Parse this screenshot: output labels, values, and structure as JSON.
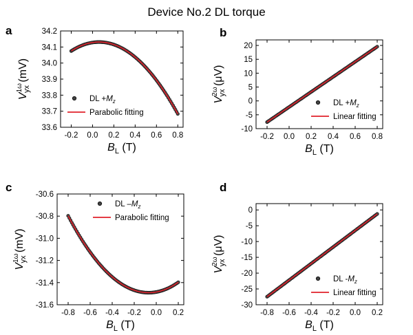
{
  "figure_title": "Device No.2 DL torque",
  "colors": {
    "data": "#111111",
    "fit": "#e0202a",
    "axis": "#000000"
  },
  "chart_data": [
    {
      "panel": "a",
      "type": "scatter",
      "xlabel": "B",
      "xlabel_sub": "L",
      "xlabel_unit": "(T)",
      "ylabel": "V",
      "ylabel_sup": "1ω",
      "ylabel_sub": "yx",
      "ylabel_unit": "(mV)",
      "xlim": [
        -0.3,
        0.85
      ],
      "ylim": [
        33.6,
        34.2
      ],
      "xticks": [
        -0.2,
        0.0,
        0.2,
        0.4,
        0.6,
        0.8
      ],
      "yticks": [
        33.6,
        33.7,
        33.8,
        33.9,
        34.0,
        34.1,
        34.2
      ],
      "xtick_labels": [
        "-0.2",
        "0.0",
        "0.2",
        "0.4",
        "0.6",
        "0.8"
      ],
      "ytick_labels": [
        "33.6",
        "33.7",
        "33.8",
        "33.9",
        "34.0",
        "34.1",
        "34.2"
      ],
      "legend_position": "bottom-left",
      "legend": [
        {
          "kind": "scatter",
          "label": "DL +",
          "math": "M",
          "math_sub": "z"
        },
        {
          "kind": "line",
          "label": "Parabolic fitting"
        }
      ],
      "data_series": {
        "x_range": [
          -0.2,
          0.8
        ],
        "coeffs": [
          34.128,
          0.1,
          -0.82
        ]
      },
      "fit_series": {
        "x_range": [
          -0.2,
          0.8
        ],
        "coeffs": [
          34.128,
          0.1,
          -0.82
        ]
      }
    },
    {
      "panel": "b",
      "type": "scatter",
      "xlabel": "B",
      "xlabel_sub": "L",
      "xlabel_unit": "(T)",
      "ylabel": "V",
      "ylabel_sup": "2ω",
      "ylabel_sub": "yx",
      "ylabel_unit": "(μV)",
      "xlim": [
        -0.3,
        0.85
      ],
      "ylim": [
        -10,
        22
      ],
      "xticks": [
        -0.2,
        0.0,
        0.2,
        0.4,
        0.6,
        0.8
      ],
      "yticks": [
        -10,
        -5,
        0,
        5,
        10,
        15,
        20
      ],
      "xtick_labels": [
        "-0.2",
        "0.0",
        "0.2",
        "0.4",
        "0.6",
        "0.8"
      ],
      "ytick_labels": [
        "-10",
        "-5",
        "0",
        "5",
        "10",
        "15",
        "20"
      ],
      "legend_position": "bottom-right",
      "legend": [
        {
          "kind": "scatter",
          "label": "DL +",
          "math": "M",
          "math_sub": "z"
        },
        {
          "kind": "line",
          "label": "Linear fitting"
        }
      ],
      "data_series": {
        "x_range": [
          -0.2,
          0.8
        ],
        "coeffs": [
          -2.2,
          27.2,
          0
        ]
      },
      "fit_series": {
        "x_range": [
          -0.2,
          0.8
        ],
        "coeffs": [
          -2.2,
          27.2,
          0
        ]
      }
    },
    {
      "panel": "c",
      "type": "scatter",
      "xlabel": "B",
      "xlabel_sub": "L",
      "xlabel_unit": "(T)",
      "ylabel": "V",
      "ylabel_sup": "1ω",
      "ylabel_sub": "yx",
      "ylabel_unit": "(mV)",
      "xlim": [
        -0.9,
        0.25
      ],
      "ylim": [
        -31.6,
        -30.6
      ],
      "xticks": [
        -0.8,
        -0.6,
        -0.4,
        -0.2,
        0.0,
        0.2
      ],
      "yticks": [
        -31.6,
        -31.4,
        -31.2,
        -31.0,
        -30.8,
        -30.6
      ],
      "xtick_labels": [
        "-0.8",
        "-0.6",
        "-0.4",
        "-0.2",
        "0.0",
        "0.2"
      ],
      "ytick_labels": [
        "-31.6",
        "-31.4",
        "-31.2",
        "-31.0",
        "-30.8",
        "-30.6"
      ],
      "legend_position": "top-right",
      "legend": [
        {
          "kind": "scatter",
          "label": "DL –",
          "math": "M",
          "math_sub": "z"
        },
        {
          "kind": "line",
          "label": "Parabolic fitting"
        }
      ],
      "data_series": {
        "x_range": [
          -0.8,
          0.2
        ],
        "coeffs": [
          -31.485,
          0.18,
          1.3
        ]
      },
      "fit_series": {
        "x_range": [
          -0.8,
          0.2
        ],
        "coeffs": [
          -31.485,
          0.18,
          1.3
        ]
      }
    },
    {
      "panel": "d",
      "type": "scatter",
      "xlabel": "B",
      "xlabel_sub": "L",
      "xlabel_unit": "(T)",
      "ylabel": "V",
      "ylabel_sup": "2ω",
      "ylabel_sub": "yx",
      "ylabel_unit": "(μV)",
      "xlim": [
        -0.9,
        0.25
      ],
      "ylim": [
        -30,
        2
      ],
      "xticks": [
        -0.8,
        -0.6,
        -0.4,
        -0.2,
        0.0,
        0.2
      ],
      "yticks": [
        -30,
        -25,
        -20,
        -15,
        -10,
        -5,
        0
      ],
      "xtick_labels": [
        "-0.8",
        "-0.6",
        "-0.4",
        "-0.2",
        "0.0",
        "0.2"
      ],
      "ytick_labels": [
        "-30",
        "-25",
        "-20",
        "-15",
        "-10",
        "-5",
        "0"
      ],
      "legend_position": "bottom-right",
      "legend": [
        {
          "kind": "scatter",
          "label": "DL -",
          "math": "M",
          "math_sub": "z"
        },
        {
          "kind": "line",
          "label": "Linear fitting"
        }
      ],
      "data_series": {
        "x_range": [
          -0.8,
          0.2
        ],
        "coeffs": [
          -6.5,
          26.2,
          0
        ]
      },
      "fit_series": {
        "x_range": [
          -0.8,
          0.2
        ],
        "coeffs": [
          -6.5,
          26.2,
          0
        ]
      }
    }
  ]
}
